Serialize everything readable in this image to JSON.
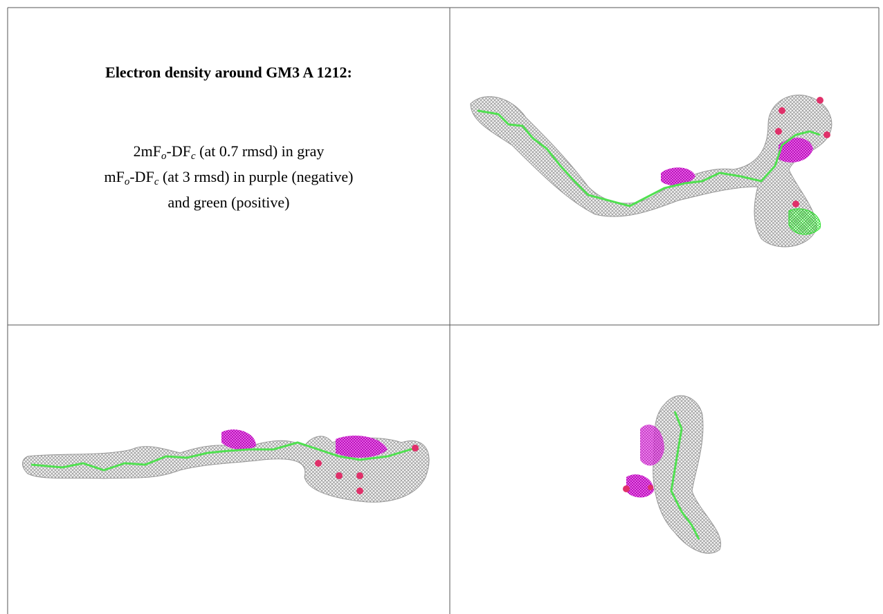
{
  "header": {
    "title": "Electron density around GM3 A 1212:"
  },
  "legend": {
    "lines": [
      [
        "2mF",
        "o",
        "-DF",
        "c",
        " (at 0.7 rmsd) in gray"
      ],
      [
        "mF",
        "o",
        "-DF",
        "c",
        " (at 3 rmsd) in purple (negative)"
      ],
      [
        "and green (positive)"
      ]
    ]
  }
}
